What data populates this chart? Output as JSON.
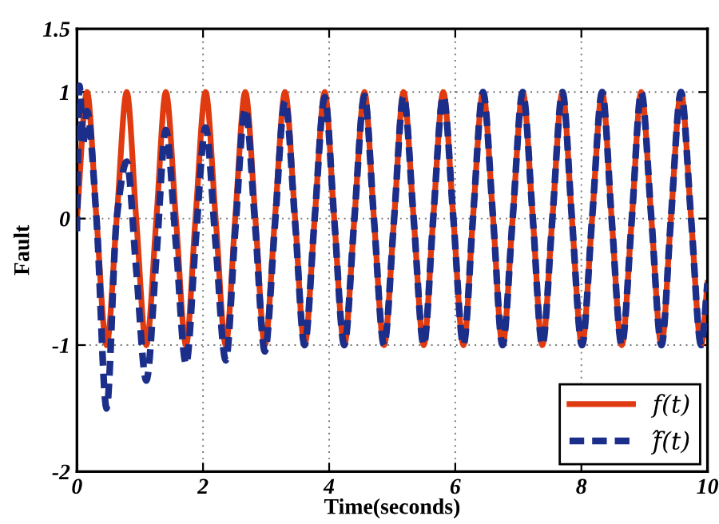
{
  "chart_data": {
    "type": "line",
    "xlabel": "Time(seconds)",
    "ylabel": "Fault",
    "xlim": [
      0,
      10
    ],
    "ylim": [
      -2,
      1.5
    ],
    "xticks": [
      0,
      2,
      4,
      6,
      8,
      10
    ],
    "yticks": [
      -2,
      -1,
      0,
      1,
      1.5
    ],
    "grid": true,
    "legend": "bottom right",
    "marker": "none",
    "x": [
      0,
      0.16,
      0.31,
      0.47,
      0.63,
      0.79,
      0.94,
      1.1,
      1.26,
      1.41,
      1.57,
      1.73,
      1.88,
      2.04,
      2.2,
      2.36,
      2.51,
      2.67,
      2.83,
      2.98,
      3.14,
      3.3,
      3.46,
      3.61,
      3.77,
      3.93,
      4.08,
      4.24,
      4.4,
      4.56,
      4.71,
      4.87,
      5.03,
      5.18,
      5.34,
      5.5,
      5.65,
      5.81,
      5.97,
      6.13,
      6.28,
      6.44,
      6.6,
      6.75,
      6.91,
      7.07,
      7.23,
      7.38,
      7.54,
      7.7,
      7.85,
      8.01,
      8.17,
      8.33,
      8.48,
      8.64,
      8.8,
      8.95,
      9.11,
      9.27,
      9.42,
      9.58,
      9.74,
      9.9,
      10
    ],
    "series": [
      {
        "name": "f(t)",
        "color": "#e03a10",
        "line_style": "solid",
        "values": [
          0,
          1,
          0,
          -1,
          0,
          1,
          0,
          -1,
          0,
          1,
          0,
          -1,
          0,
          1,
          0,
          -1,
          0,
          1,
          0,
          -1,
          0,
          1,
          0,
          -1,
          0,
          1,
          0,
          -1,
          0,
          1,
          0,
          -1,
          0,
          1,
          0,
          -1,
          0,
          1,
          0,
          -1,
          0,
          1,
          0,
          -1,
          0,
          1,
          0,
          -1,
          0,
          1,
          0,
          -1,
          0,
          1,
          0,
          -1,
          0,
          1,
          0,
          -1,
          0,
          1,
          0,
          -1,
          -0.51
        ]
      },
      {
        "name": "f̂(t)",
        "color": "#1a2e8a",
        "line_style": "dashed",
        "x": [
          0,
          0.04,
          0.1,
          0.16,
          0.31,
          0.47,
          0.63,
          0.79,
          0.94,
          1.1,
          1.26,
          1.41,
          1.57,
          1.73,
          1.88,
          2.04,
          2.2,
          2.36,
          2.51,
          2.67,
          2.83,
          2.98,
          3.14,
          3.3,
          3.46,
          3.61,
          3.77,
          3.93,
          4.08,
          4.24,
          4.4,
          4.56,
          4.71,
          4.87,
          5.03,
          5.18,
          5.34,
          5.5,
          5.65,
          5.81,
          5.97,
          6.13,
          6.28,
          6.44,
          6.6,
          6.75,
          6.91,
          7.07,
          7.23,
          7.38,
          7.54,
          7.7,
          7.85,
          8.01,
          8.17,
          8.33,
          8.48,
          8.64,
          8.8,
          8.95,
          9.11,
          9.27,
          9.42,
          9.58,
          9.74,
          9.9,
          10
        ],
        "values": [
          -0.1,
          1.05,
          0.6,
          0.85,
          0,
          -1.5,
          0,
          0.45,
          -0.4,
          -1.28,
          -0.3,
          0.7,
          -0.2,
          -1.15,
          -0.2,
          0.72,
          -0.2,
          -1.12,
          -0.1,
          0.87,
          -0.08,
          -1.05,
          -0.05,
          0.93,
          -0.03,
          -1.0,
          0,
          0.96,
          0,
          -1.0,
          0,
          0.97,
          0,
          -1,
          0,
          0.97,
          0,
          -1,
          0,
          0.97,
          0,
          -1,
          0,
          1,
          0,
          -1,
          0,
          1,
          0,
          -1,
          0,
          1,
          0,
          -1,
          0,
          1,
          0,
          -1,
          0,
          1,
          0,
          -1,
          0,
          1,
          0,
          -1,
          -0.51
        ]
      }
    ]
  }
}
